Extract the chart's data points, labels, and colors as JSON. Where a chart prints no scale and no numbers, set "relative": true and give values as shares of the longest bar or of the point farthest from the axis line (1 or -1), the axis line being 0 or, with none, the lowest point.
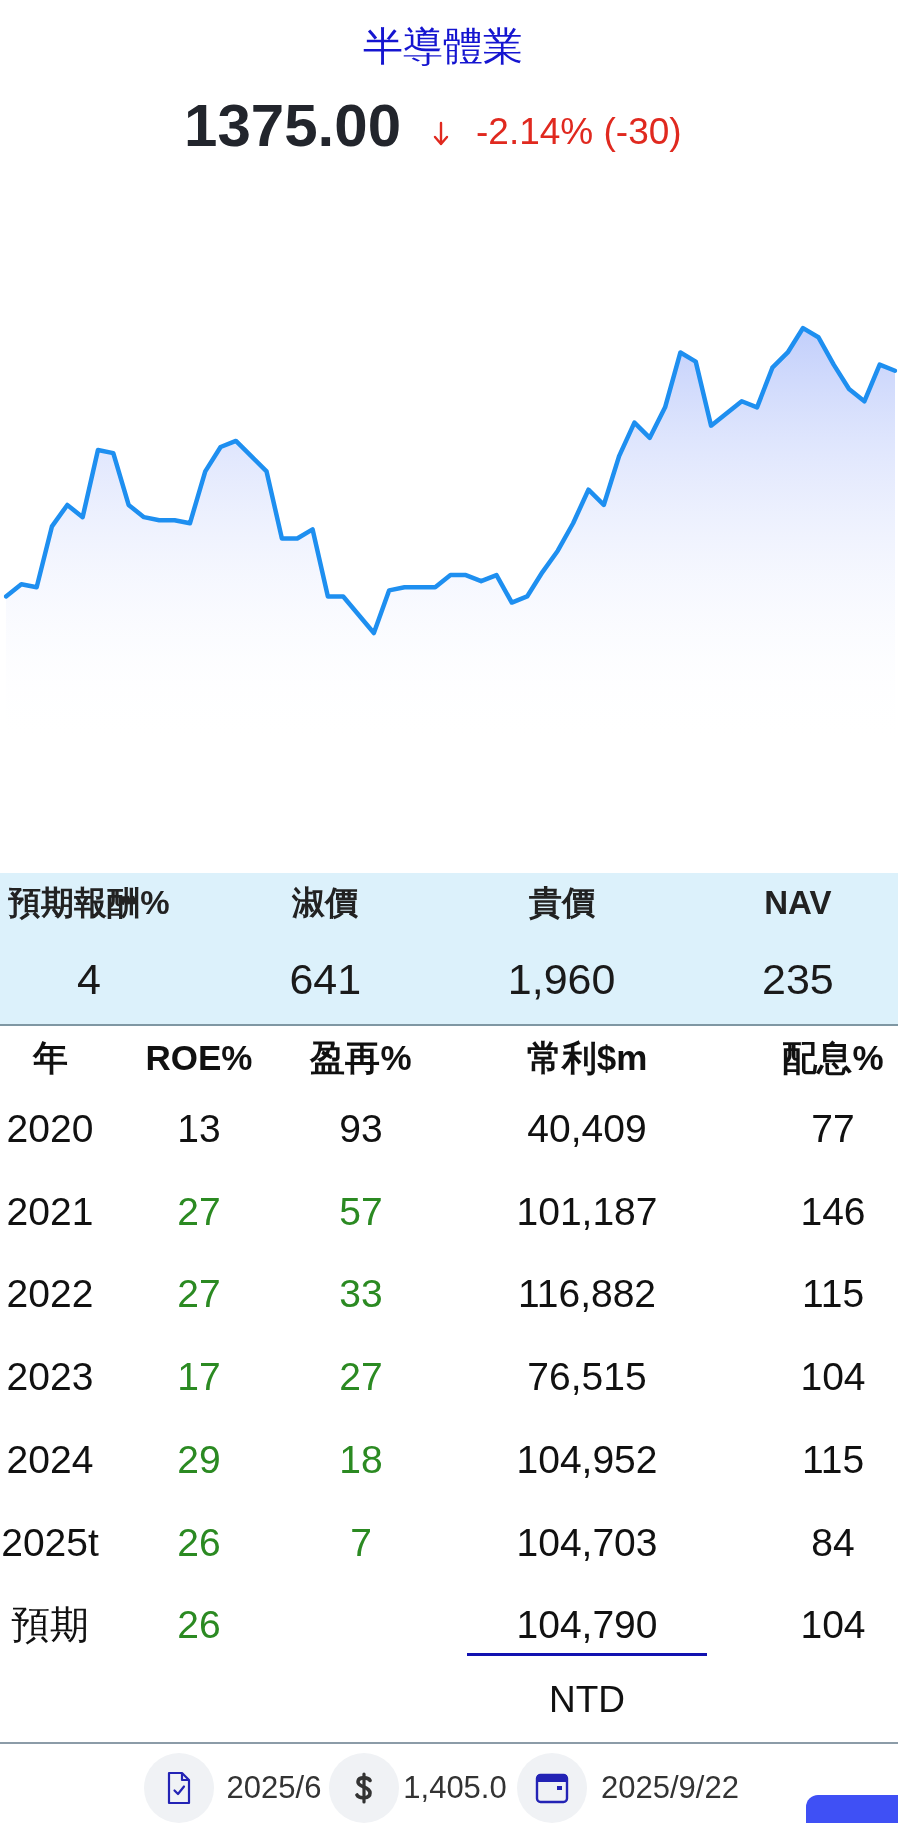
{
  "chart_data": [
    {
      "type": "area",
      "title": "半導體業",
      "annotations": [
        "1375.00",
        "-2.14% (-30)"
      ],
      "relative": true,
      "color": "#1e8ff0",
      "categories": [
        null,
        null,
        null,
        null,
        null,
        null,
        null,
        null,
        null,
        null,
        null,
        null,
        null,
        null,
        null,
        null,
        null,
        null,
        null,
        null,
        null,
        null,
        null,
        null,
        null,
        null,
        null,
        null,
        null,
        null,
        null,
        null,
        null,
        null,
        null,
        null,
        null,
        null,
        null,
        null,
        null,
        null,
        null,
        null,
        null,
        null,
        null,
        null,
        null,
        null,
        null,
        null,
        null,
        null,
        null,
        null,
        null,
        null,
        null
      ],
      "values": [
        0.12,
        0.16,
        0.15,
        0.35,
        0.42,
        0.38,
        0.6,
        0.59,
        0.42,
        0.38,
        0.37,
        0.37,
        0.36,
        0.53,
        0.61,
        0.63,
        0.58,
        0.53,
        0.31,
        0.31,
        0.34,
        0.12,
        0.12,
        0.06,
        0,
        0.14,
        0.15,
        0.15,
        0.15,
        0.19,
        0.19,
        0.17,
        0.19,
        0.1,
        0.12,
        0.2,
        0.27,
        0.36,
        0.47,
        0.42,
        0.58,
        0.69,
        0.64,
        0.74,
        0.92,
        0.89,
        0.68,
        0.72,
        0.76,
        0.74,
        0.87,
        0.92,
        1,
        0.97,
        0.88,
        0.8,
        0.76,
        0.88,
        0.86
      ]
    },
    {
      "type": "other",
      "categories": [
        "預期報酬%",
        "淑價",
        "貴價",
        "NAV"
      ],
      "values": [
        4,
        641,
        1960,
        235
      ],
      "value_labels": [
        "4",
        "641",
        "1,960",
        "235"
      ]
    },
    {
      "type": "heatmap",
      "ylabel": "年",
      "categories": [
        "ROE%",
        "盈再%",
        "常利$m",
        "配息%"
      ],
      "y_categories": [
        "2020",
        "2021",
        "2022",
        "2023",
        "2024",
        "2025t",
        "預期"
      ],
      "cells": [
        [
          13,
          93,
          40409,
          77
        ],
        [
          27,
          57,
          101187,
          146
        ],
        [
          27,
          33,
          116882,
          115
        ],
        [
          17,
          27,
          76515,
          104
        ],
        [
          29,
          18,
          104952,
          115
        ],
        [
          26,
          7,
          104703,
          84
        ],
        [
          26,
          null,
          104790,
          104
        ]
      ],
      "cell_labels": [
        [
          "13",
          "93",
          "40,409",
          "77"
        ],
        [
          "27",
          "57",
          "101,187",
          "146"
        ],
        [
          "27",
          "33",
          "116,882",
          "115"
        ],
        [
          "17",
          "27",
          "76,515",
          "104"
        ],
        [
          "29",
          "18",
          "104,952",
          "115"
        ],
        [
          "26",
          "7",
          "104,703",
          "84"
        ],
        [
          "26",
          null,
          "104,790",
          "104"
        ]
      ],
      "colors": [
        [
          "#111111",
          "#111111",
          "#111111",
          "#111111"
        ],
        [
          "#2b8a22",
          "#2b8a22",
          "#111111",
          "#111111"
        ],
        [
          "#2b8a22",
          "#2b8a22",
          "#111111",
          "#111111"
        ],
        [
          "#2b8a22",
          "#2b8a22",
          "#111111",
          "#111111"
        ],
        [
          "#2b8a22",
          "#2b8a22",
          "#111111",
          "#111111"
        ],
        [
          "#2b8a22",
          "#2b8a22",
          "#111111",
          "#111111"
        ],
        [
          "#2b8a22",
          null,
          "#111111",
          "#111111"
        ]
      ],
      "annotations": [
        "NTD",
        "2025/6",
        "1,405.0",
        "2025/9/22"
      ]
    }
  ]
}
